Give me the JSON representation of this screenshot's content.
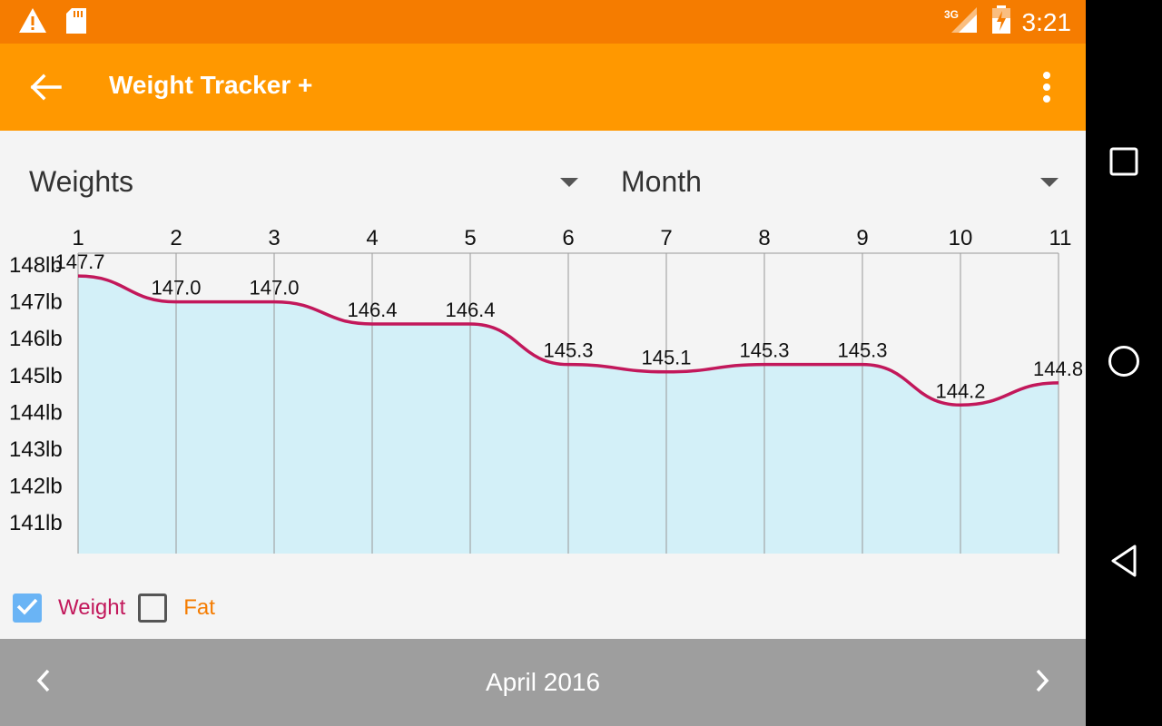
{
  "status_bar": {
    "time": "3:21",
    "network": "3G",
    "icons": [
      "warning-icon",
      "sd-card-icon",
      "signal-icon",
      "battery-charging-icon"
    ]
  },
  "toolbar": {
    "title": "Weight Tracker +",
    "back_icon": "arrow-back-icon",
    "menu_icon": "more-vert-icon"
  },
  "selectors": {
    "type": "Weights",
    "period": "Month"
  },
  "chart_data": {
    "type": "area",
    "title": "",
    "xlabel": "",
    "ylabel": "",
    "x": [
      1,
      2,
      3,
      4,
      5,
      6,
      7,
      8,
      9,
      10,
      11
    ],
    "x_ticks": [
      "1",
      "2",
      "3",
      "4",
      "5",
      "6",
      "7",
      "8",
      "9",
      "10",
      "11"
    ],
    "y_ticks": [
      "148lb",
      "147lb",
      "146lb",
      "145lb",
      "144lb",
      "143lb",
      "142lb",
      "141lb"
    ],
    "series": [
      {
        "name": "Weight",
        "values": [
          147.7,
          147.0,
          147.0,
          146.4,
          146.4,
          145.3,
          145.1,
          145.3,
          145.3,
          144.2,
          144.8
        ],
        "labels": [
          "147.7",
          "147.0",
          "147.0",
          "146.4",
          "146.4",
          "145.3",
          "145.1",
          "145.3",
          "145.3",
          "144.2",
          "144.8"
        ],
        "color": "#c2185b"
      }
    ],
    "ylim": [
      140.2,
      148.3
    ],
    "xlim": [
      1,
      11
    ],
    "fill_color": "#d3f0f8",
    "grid": true
  },
  "legend": {
    "weight_label": "Weight",
    "weight_checked": true,
    "weight_color": "#c2185b",
    "fat_label": "Fat",
    "fat_checked": false,
    "fat_color": "#f57c00"
  },
  "footer": {
    "month": "April 2016",
    "prev_icon": "chevron-left-icon",
    "next_icon": "chevron-right-icon"
  },
  "nav_bar": {
    "icons": [
      "recents-icon",
      "home-icon",
      "back-icon"
    ]
  }
}
